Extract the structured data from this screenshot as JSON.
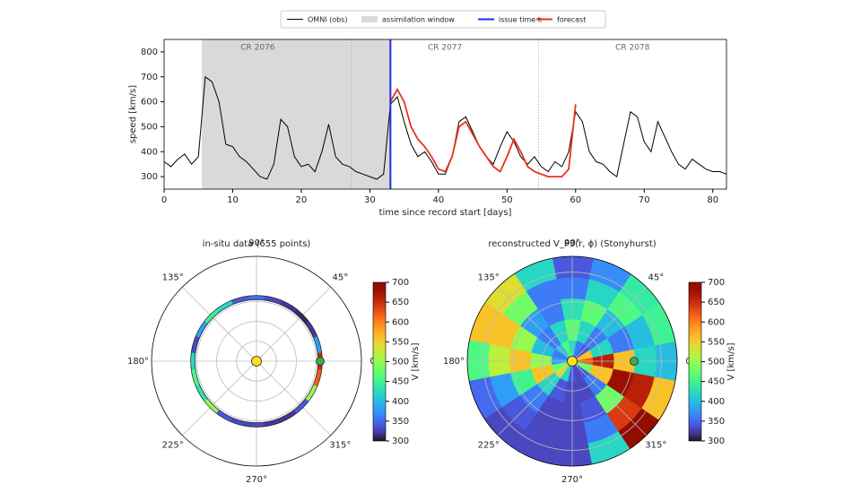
{
  "chart_data": [
    {
      "type": "line",
      "xlabel": "time since record start [days]",
      "ylabel": "speed [km/s]",
      "xlim": [
        0,
        82
      ],
      "ylim": [
        250,
        850
      ],
      "xticks": [
        0,
        10,
        20,
        30,
        40,
        50,
        60,
        70,
        80
      ],
      "yticks": [
        300,
        400,
        500,
        600,
        700,
        800
      ],
      "legend": "top",
      "series": [
        {
          "name": "OMNI (obs)",
          "color": "#000000",
          "x": [
            0,
            1,
            2,
            3,
            4,
            5,
            6,
            7,
            8,
            9,
            10,
            11,
            12,
            13,
            14,
            15,
            16,
            17,
            18,
            19,
            20,
            21,
            22,
            23,
            24,
            25,
            26,
            27,
            28,
            29,
            30,
            31,
            32,
            33,
            34,
            35,
            36,
            37,
            38,
            39,
            40,
            41,
            42,
            43,
            44,
            45,
            46,
            47,
            48,
            49,
            50,
            51,
            52,
            53,
            54,
            55,
            56,
            57,
            58,
            59,
            60,
            61,
            62,
            63,
            64,
            65,
            66,
            67,
            68,
            69,
            70,
            71,
            72,
            73,
            74,
            75,
            76,
            77,
            78,
            79,
            80,
            81,
            82
          ],
          "values": [
            360,
            340,
            370,
            390,
            350,
            380,
            700,
            680,
            600,
            430,
            420,
            380,
            360,
            330,
            300,
            290,
            350,
            530,
            500,
            380,
            340,
            350,
            320,
            400,
            510,
            380,
            350,
            340,
            320,
            310,
            300,
            290,
            310,
            590,
            620,
            520,
            430,
            380,
            400,
            360,
            310,
            310,
            380,
            520,
            540,
            480,
            420,
            380,
            350,
            420,
            480,
            440,
            380,
            350,
            380,
            340,
            320,
            360,
            340,
            400,
            560,
            520,
            400,
            360,
            350,
            320,
            300,
            430,
            560,
            540,
            440,
            400,
            520,
            460,
            400,
            350,
            330,
            370,
            350,
            330,
            320,
            320,
            310
          ]
        },
        {
          "name": "forecast",
          "color": "#e8321e",
          "x": [
            33,
            34,
            35,
            36,
            37,
            38,
            39,
            40,
            41,
            42,
            43,
            44,
            45,
            46,
            47,
            48,
            49,
            50,
            51,
            52,
            53,
            54,
            55,
            56,
            57,
            58,
            59,
            60
          ],
          "values": [
            600,
            650,
            600,
            500,
            450,
            420,
            380,
            330,
            320,
            380,
            500,
            520,
            470,
            420,
            380,
            340,
            320,
            380,
            450,
            400,
            340,
            320,
            310,
            300,
            300,
            300,
            330,
            590
          ]
        }
      ],
      "assimilation_window": {
        "name": "assimilation window",
        "range": [
          5.5,
          33
        ],
        "color": "#d9d9d9"
      },
      "issue_time": {
        "name": "issue time tᵢ",
        "value": 33,
        "color": "#1f2fdc"
      },
      "carrington": {
        "labels": [
          "CR 2076",
          "CR 2077",
          "CR 2078"
        ],
        "boundaries": [
          27.3,
          54.6
        ]
      }
    },
    {
      "type": "polar_ring",
      "title": "in-situ data (655 points)",
      "theta": [
        0,
        15,
        30,
        45,
        60,
        75,
        90,
        105,
        120,
        135,
        150,
        165,
        180,
        195,
        210,
        225,
        240,
        255,
        270,
        285,
        300,
        315,
        330,
        345
      ],
      "values": [
        650,
        380,
        320,
        310,
        320,
        330,
        350,
        340,
        420,
        450,
        380,
        330,
        420,
        460,
        430,
        500,
        340,
        330,
        330,
        320,
        320,
        340,
        500,
        620
      ],
      "thetaticks": [
        {
          "value": 0,
          "label": "0°"
        },
        {
          "value": 45,
          "label": "45°"
        },
        {
          "value": 90,
          "label": "90°"
        },
        {
          "value": 135,
          "label": "135°"
        },
        {
          "value": 180,
          "label": "180°"
        },
        {
          "value": 225,
          "label": "225°"
        },
        {
          "value": 270,
          "label": "270°"
        },
        {
          "value": 315,
          "label": "315°"
        }
      ],
      "cmap": "turbo",
      "colorbar": {
        "label": "V [km/s]",
        "lim": [
          300,
          700
        ],
        "ticks": [
          300,
          350,
          400,
          450,
          500,
          550,
          600,
          650,
          700
        ]
      }
    },
    {
      "type": "polar_heatmap",
      "title": "reconstructed V_P3(r, ϕ) (Stonyhurst)",
      "theta": [
        0,
        22.5,
        45,
        67.5,
        90,
        112.5,
        135,
        157.5,
        180,
        202.5,
        225,
        247.5,
        270,
        292.5,
        315,
        337.5
      ],
      "z": [
        [
          620,
          560,
          340,
          360,
          420,
          460,
          400,
          360,
          380,
          480,
          540,
          420,
          340,
          330,
          340,
          480
        ],
        [
          660,
          420,
          360,
          420,
          470,
          420,
          360,
          400,
          500,
          560,
          420,
          340,
          330,
          330,
          360,
          560
        ],
        [
          560,
          360,
          400,
          470,
          430,
          360,
          380,
          500,
          560,
          450,
          360,
          330,
          330,
          340,
          480,
          680
        ],
        [
          420,
          400,
          460,
          420,
          360,
          360,
          480,
          560,
          520,
          380,
          340,
          330,
          330,
          360,
          640,
          660
        ],
        [
          400,
          450,
          440,
          370,
          340,
          420,
          540,
          560,
          460,
          350,
          330,
          330,
          330,
          420,
          690,
          560
        ]
      ],
      "thetaticks": [
        {
          "value": 0,
          "label": "0°"
        },
        {
          "value": 45,
          "label": "45°"
        },
        {
          "value": 90,
          "label": "90°"
        },
        {
          "value": 135,
          "label": "135°"
        },
        {
          "value": 180,
          "label": "180°"
        },
        {
          "value": 225,
          "label": "225°"
        },
        {
          "value": 270,
          "label": "270°"
        },
        {
          "value": 315,
          "label": "315°"
        }
      ],
      "cmap": "turbo",
      "colorbar": {
        "label": "V [km/s]",
        "lim": [
          300,
          700
        ],
        "ticks": [
          300,
          350,
          400,
          450,
          500,
          550,
          600,
          650,
          700
        ]
      }
    }
  ]
}
